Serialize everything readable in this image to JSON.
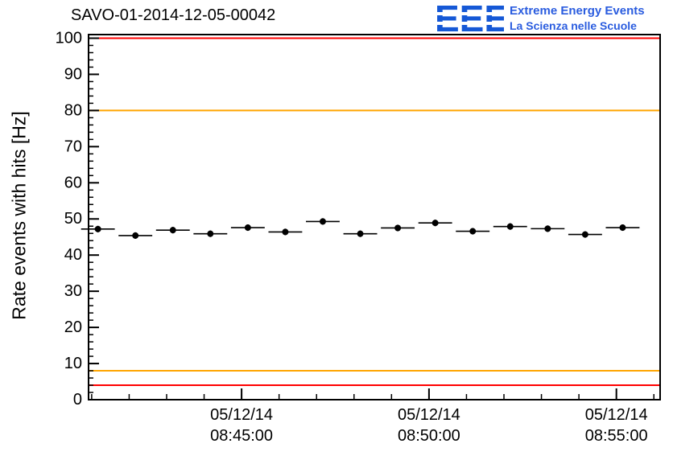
{
  "header": {
    "title": "SAVO-01-2014-12-05-00042",
    "logo": {
      "acronym": "EEE",
      "line1": "Extreme Energy Events",
      "line2": "La Scienza nelle Scuole",
      "acronym_color": "#1558d6",
      "text_color": "#2a5cdf"
    }
  },
  "chart_data": {
    "type": "scatter",
    "title": "SAVO-01-2014-12-05-00042",
    "xlabel": "",
    "ylabel": "Rate events with hits [Hz]",
    "ylim": [
      0,
      101
    ],
    "y_major_ticks": [
      0,
      10,
      20,
      30,
      40,
      50,
      60,
      70,
      80,
      90,
      100
    ],
    "y_minor_step": 2,
    "x_domain_s": [
      0,
      915
    ],
    "x_minor_step_s": 60,
    "x_minor_start_s": 5,
    "x_major_ticks": [
      {
        "s": 245,
        "date": "05/12/14",
        "time": "08:45:00"
      },
      {
        "s": 545,
        "date": "05/12/14",
        "time": "08:50:00"
      },
      {
        "s": 845,
        "date": "05/12/14",
        "time": "08:55:00"
      }
    ],
    "threshold_lines": [
      {
        "y": 100,
        "color": "#ff0000"
      },
      {
        "y": 80,
        "color": "#ffa500"
      },
      {
        "y": 8,
        "color": "#ffa500"
      },
      {
        "y": 4,
        "color": "#ff0000"
      }
    ],
    "marker_color": "#000000",
    "grid": false,
    "legend": false,
    "points": [
      {
        "s": 15,
        "y": 47.2,
        "xerr_s": 27,
        "yerr": 0.9
      },
      {
        "s": 75,
        "y": 45.4,
        "xerr_s": 27,
        "yerr": 0.9
      },
      {
        "s": 135,
        "y": 46.9,
        "xerr_s": 27,
        "yerr": 0.9
      },
      {
        "s": 195,
        "y": 45.9,
        "xerr_s": 27,
        "yerr": 0.9
      },
      {
        "s": 255,
        "y": 47.6,
        "xerr_s": 27,
        "yerr": 0.9
      },
      {
        "s": 315,
        "y": 46.4,
        "xerr_s": 27,
        "yerr": 0.9
      },
      {
        "s": 375,
        "y": 49.3,
        "xerr_s": 27,
        "yerr": 0.9
      },
      {
        "s": 435,
        "y": 45.9,
        "xerr_s": 27,
        "yerr": 0.9
      },
      {
        "s": 495,
        "y": 47.5,
        "xerr_s": 27,
        "yerr": 0.9
      },
      {
        "s": 555,
        "y": 48.9,
        "xerr_s": 27,
        "yerr": 0.9
      },
      {
        "s": 615,
        "y": 46.6,
        "xerr_s": 27,
        "yerr": 0.9
      },
      {
        "s": 675,
        "y": 47.9,
        "xerr_s": 27,
        "yerr": 0.9
      },
      {
        "s": 735,
        "y": 47.3,
        "xerr_s": 27,
        "yerr": 0.9
      },
      {
        "s": 795,
        "y": 45.7,
        "xerr_s": 27,
        "yerr": 0.9
      },
      {
        "s": 855,
        "y": 47.6,
        "xerr_s": 27,
        "yerr": 0.9
      }
    ]
  }
}
